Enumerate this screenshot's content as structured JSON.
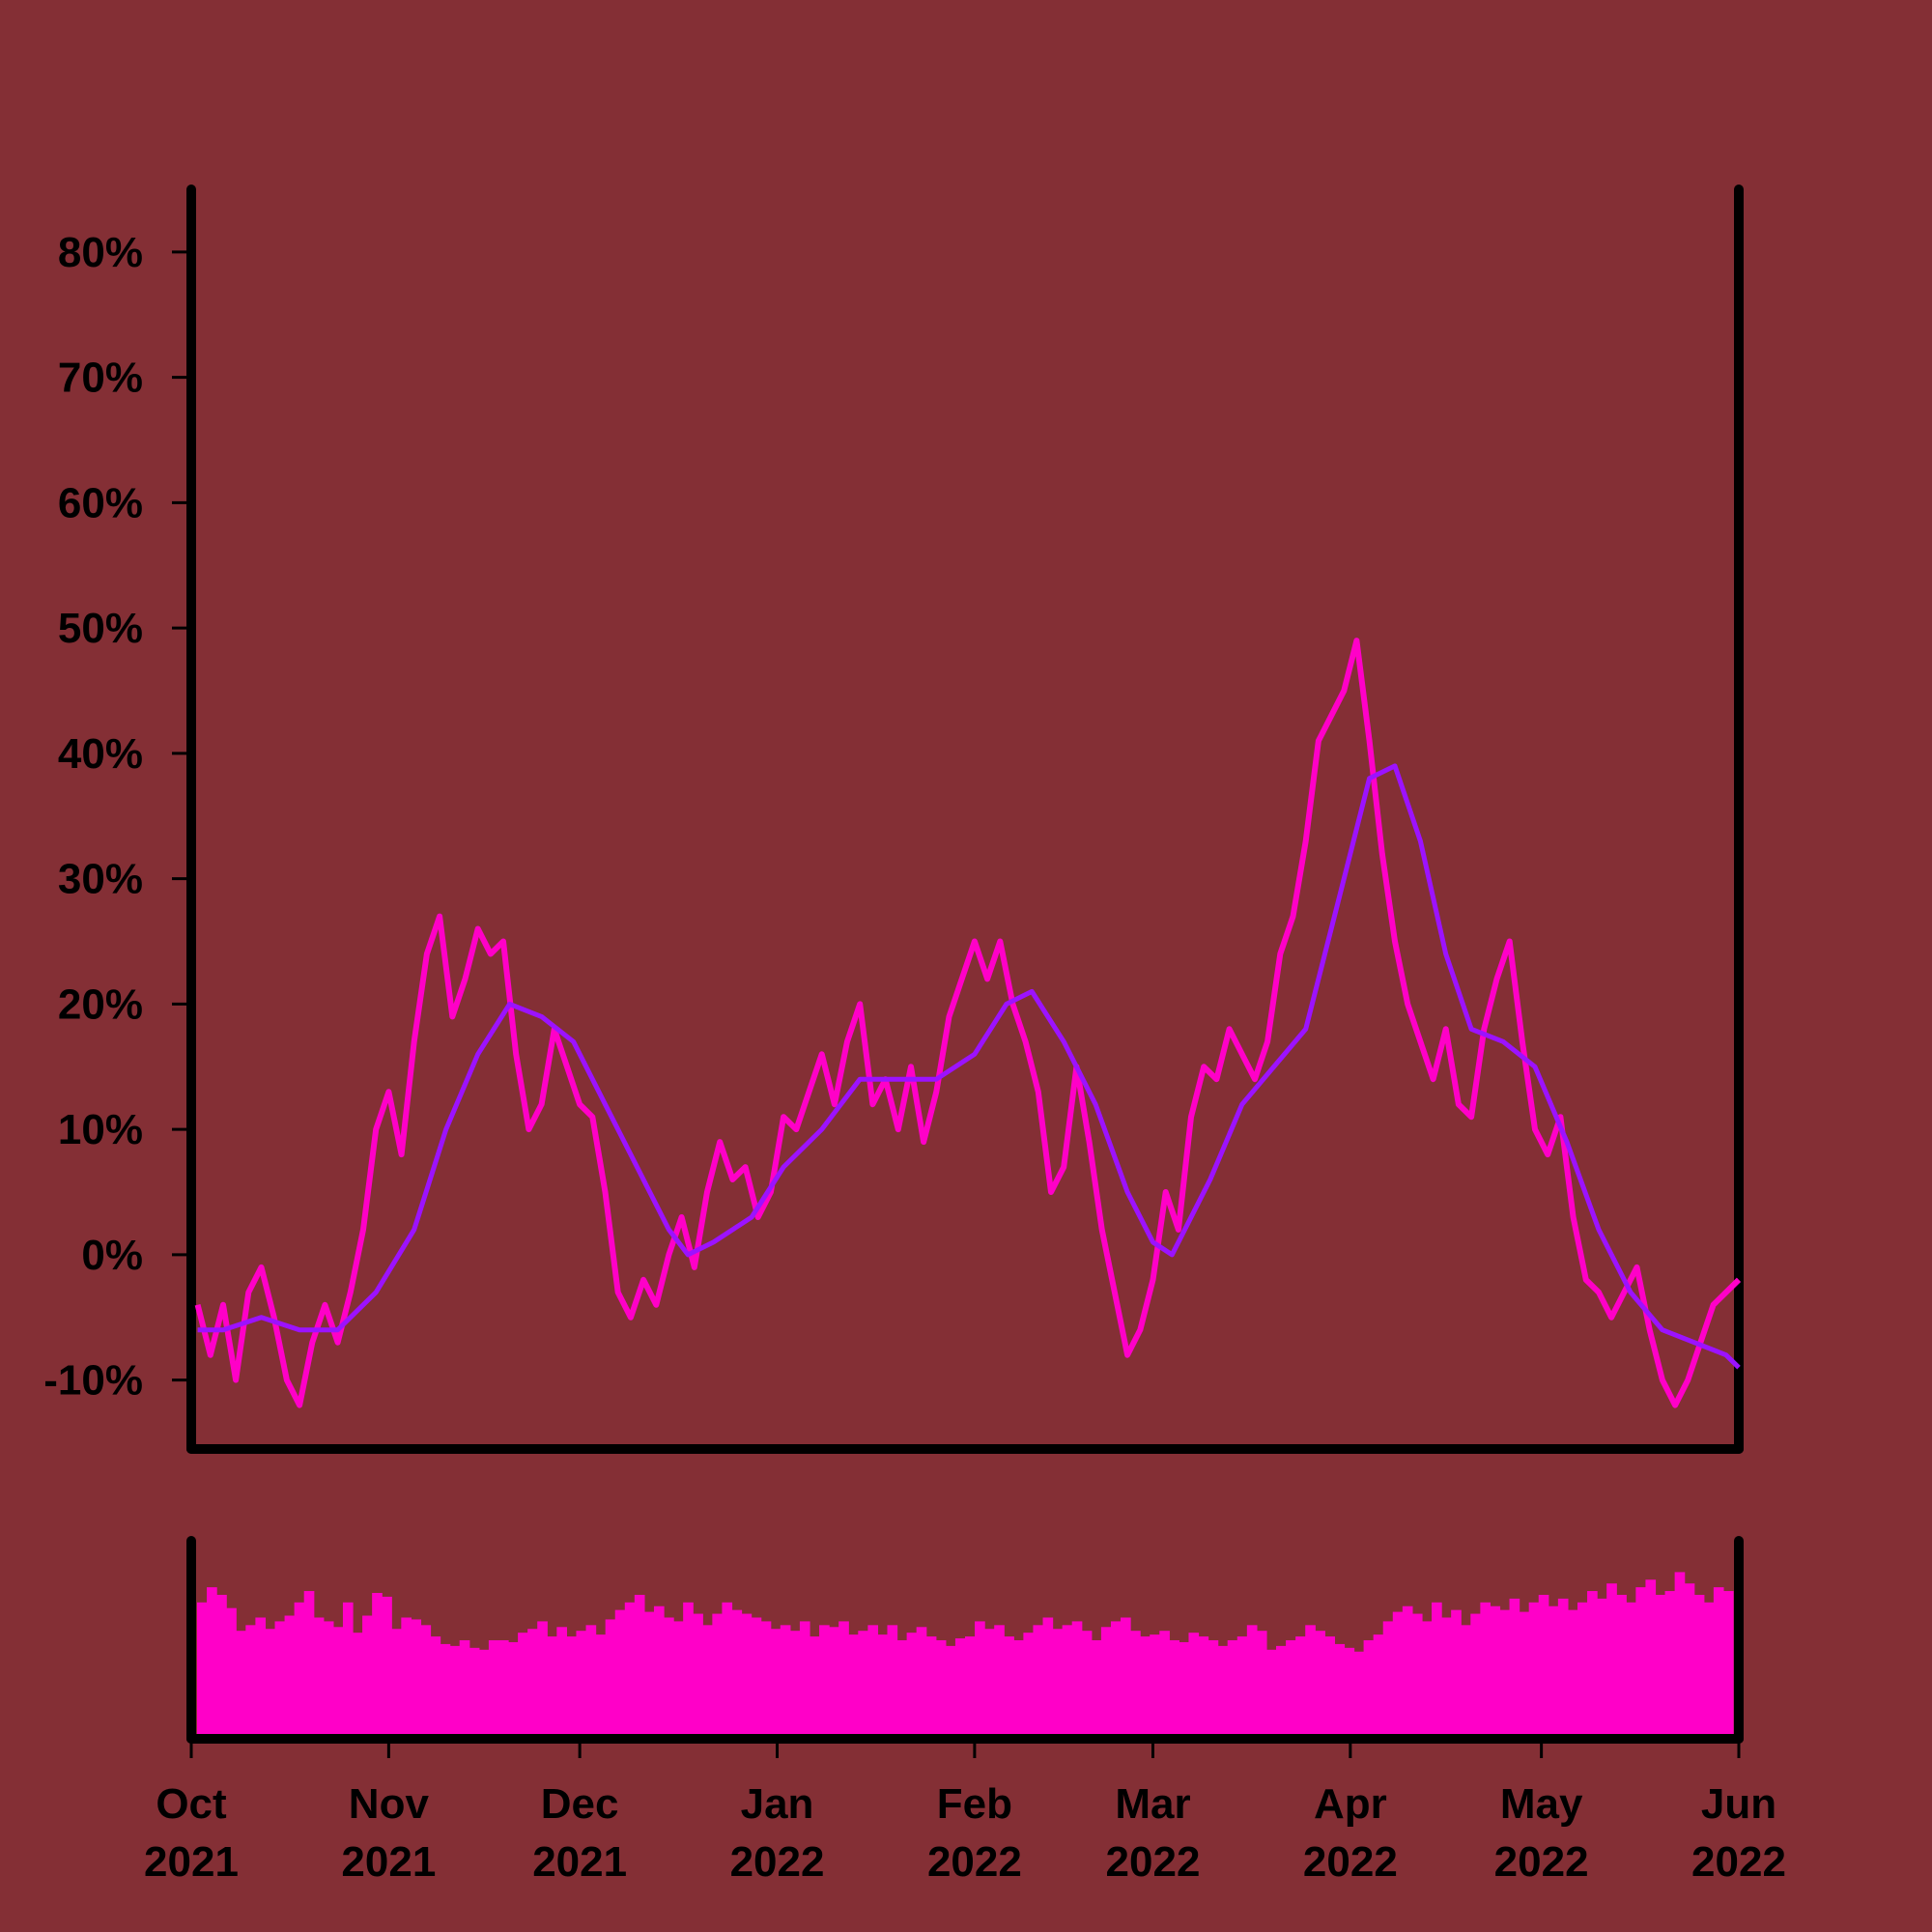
{
  "colors": {
    "background": "#842f35",
    "axis": "#000000",
    "price_line": "#ff00c8",
    "moving_average": "#9c12ff",
    "volume_bars": "#ff00c8"
  },
  "chart_data": [
    {
      "type": "line",
      "panel": "price",
      "title": "",
      "xlabel": "",
      "ylabel": "",
      "x_range": [
        "2021-10-01",
        "2022-06-01"
      ],
      "ylim": [
        -15.5,
        85
      ],
      "grid": false,
      "y_ticks": [
        {
          "value": -10,
          "label": "-10%"
        },
        {
          "value": 0,
          "label": "0%"
        },
        {
          "value": 10,
          "label": "10%"
        },
        {
          "value": 20,
          "label": "20%"
        },
        {
          "value": 30,
          "label": "30%"
        },
        {
          "value": 40,
          "label": "40%"
        },
        {
          "value": 50,
          "label": "50%"
        },
        {
          "value": 60,
          "label": "60%"
        },
        {
          "value": 70,
          "label": "70%"
        },
        {
          "value": 80,
          "label": "80%"
        }
      ],
      "x_ticks": [
        {
          "date": "2021-10-01",
          "month": "Oct",
          "year": "2021"
        },
        {
          "date": "2021-11-01",
          "month": "Nov",
          "year": "2021"
        },
        {
          "date": "2021-12-01",
          "month": "Dec",
          "year": "2021"
        },
        {
          "date": "2022-01-01",
          "month": "Jan",
          "year": "2022"
        },
        {
          "date": "2022-02-01",
          "month": "Feb",
          "year": "2022"
        },
        {
          "date": "2022-03-01",
          "month": "Mar",
          "year": "2022"
        },
        {
          "date": "2022-04-01",
          "month": "Apr",
          "year": "2022"
        },
        {
          "date": "2022-05-01",
          "month": "May",
          "year": "2022"
        },
        {
          "date": "2022-06-01",
          "month": "Jun",
          "year": "2022"
        }
      ],
      "series": [
        {
          "key": "price",
          "points": [
            [
              "2021-10-02",
              -4
            ],
            [
              "2021-10-04",
              -8
            ],
            [
              "2021-10-06",
              -4
            ],
            [
              "2021-10-08",
              -10
            ],
            [
              "2021-10-10",
              -3
            ],
            [
              "2021-10-12",
              -1
            ],
            [
              "2021-10-14",
              -5
            ],
            [
              "2021-10-16",
              -10
            ],
            [
              "2021-10-18",
              -12
            ],
            [
              "2021-10-20",
              -7
            ],
            [
              "2021-10-22",
              -4
            ],
            [
              "2021-10-24",
              -7
            ],
            [
              "2021-10-26",
              -3
            ],
            [
              "2021-10-28",
              2
            ],
            [
              "2021-10-30",
              10
            ],
            [
              "2021-11-01",
              13
            ],
            [
              "2021-11-03",
              8
            ],
            [
              "2021-11-05",
              17
            ],
            [
              "2021-11-07",
              24
            ],
            [
              "2021-11-09",
              27
            ],
            [
              "2021-11-11",
              19
            ],
            [
              "2021-11-13",
              22
            ],
            [
              "2021-11-15",
              26
            ],
            [
              "2021-11-17",
              24
            ],
            [
              "2021-11-19",
              25
            ],
            [
              "2021-11-21",
              16
            ],
            [
              "2021-11-23",
              10
            ],
            [
              "2021-11-25",
              12
            ],
            [
              "2021-11-27",
              18
            ],
            [
              "2021-11-29",
              15
            ],
            [
              "2021-12-01",
              12
            ],
            [
              "2021-12-03",
              11
            ],
            [
              "2021-12-05",
              5
            ],
            [
              "2021-12-07",
              -3
            ],
            [
              "2021-12-09",
              -5
            ],
            [
              "2021-12-11",
              -2
            ],
            [
              "2021-12-13",
              -4
            ],
            [
              "2021-12-15",
              0
            ],
            [
              "2021-12-17",
              3
            ],
            [
              "2021-12-19",
              -1
            ],
            [
              "2021-12-21",
              5
            ],
            [
              "2021-12-23",
              9
            ],
            [
              "2021-12-25",
              6
            ],
            [
              "2021-12-27",
              7
            ],
            [
              "2021-12-29",
              3
            ],
            [
              "2021-12-31",
              5
            ],
            [
              "2022-01-02",
              11
            ],
            [
              "2022-01-04",
              10
            ],
            [
              "2022-01-06",
              13
            ],
            [
              "2022-01-08",
              16
            ],
            [
              "2022-01-10",
              12
            ],
            [
              "2022-01-12",
              17
            ],
            [
              "2022-01-14",
              20
            ],
            [
              "2022-01-16",
              12
            ],
            [
              "2022-01-18",
              14
            ],
            [
              "2022-01-20",
              10
            ],
            [
              "2022-01-22",
              15
            ],
            [
              "2022-01-24",
              9
            ],
            [
              "2022-01-26",
              13
            ],
            [
              "2022-01-28",
              19
            ],
            [
              "2022-01-30",
              22
            ],
            [
              "2022-02-01",
              25
            ],
            [
              "2022-02-03",
              22
            ],
            [
              "2022-02-05",
              25
            ],
            [
              "2022-02-07",
              20
            ],
            [
              "2022-02-09",
              17
            ],
            [
              "2022-02-11",
              13
            ],
            [
              "2022-02-13",
              5
            ],
            [
              "2022-02-15",
              7
            ],
            [
              "2022-02-17",
              15
            ],
            [
              "2022-02-19",
              9
            ],
            [
              "2022-02-21",
              2
            ],
            [
              "2022-02-23",
              -3
            ],
            [
              "2022-02-25",
              -8
            ],
            [
              "2022-02-27",
              -6
            ],
            [
              "2022-03-01",
              -2
            ],
            [
              "2022-03-03",
              5
            ],
            [
              "2022-03-05",
              2
            ],
            [
              "2022-03-07",
              11
            ],
            [
              "2022-03-09",
              15
            ],
            [
              "2022-03-11",
              14
            ],
            [
              "2022-03-13",
              18
            ],
            [
              "2022-03-15",
              16
            ],
            [
              "2022-03-17",
              14
            ],
            [
              "2022-03-19",
              17
            ],
            [
              "2022-03-21",
              24
            ],
            [
              "2022-03-23",
              27
            ],
            [
              "2022-03-25",
              33
            ],
            [
              "2022-03-27",
              41
            ],
            [
              "2022-03-29",
              43
            ],
            [
              "2022-03-31",
              45
            ],
            [
              "2022-04-02",
              49
            ],
            [
              "2022-04-04",
              41
            ],
            [
              "2022-04-06",
              32
            ],
            [
              "2022-04-08",
              25
            ],
            [
              "2022-04-10",
              20
            ],
            [
              "2022-04-12",
              17
            ],
            [
              "2022-04-14",
              14
            ],
            [
              "2022-04-16",
              18
            ],
            [
              "2022-04-18",
              12
            ],
            [
              "2022-04-20",
              11
            ],
            [
              "2022-04-22",
              18
            ],
            [
              "2022-04-24",
              22
            ],
            [
              "2022-04-26",
              25
            ],
            [
              "2022-04-28",
              17
            ],
            [
              "2022-04-30",
              10
            ],
            [
              "2022-05-02",
              8
            ],
            [
              "2022-05-04",
              11
            ],
            [
              "2022-05-06",
              3
            ],
            [
              "2022-05-08",
              -2
            ],
            [
              "2022-05-10",
              -3
            ],
            [
              "2022-05-12",
              -5
            ],
            [
              "2022-05-14",
              -3
            ],
            [
              "2022-05-16",
              -1
            ],
            [
              "2022-05-18",
              -6
            ],
            [
              "2022-05-20",
              -10
            ],
            [
              "2022-05-22",
              -12
            ],
            [
              "2022-05-24",
              -10
            ],
            [
              "2022-05-26",
              -7
            ],
            [
              "2022-05-28",
              -4
            ],
            [
              "2022-05-30",
              -3
            ],
            [
              "2022-06-01",
              -2
            ]
          ]
        },
        {
          "key": "moving_average",
          "points": [
            [
              "2021-10-02",
              -6
            ],
            [
              "2021-10-06",
              -6
            ],
            [
              "2021-10-12",
              -5
            ],
            [
              "2021-10-18",
              -6
            ],
            [
              "2021-10-24",
              -6
            ],
            [
              "2021-10-30",
              -3
            ],
            [
              "2021-11-05",
              2
            ],
            [
              "2021-11-10",
              10
            ],
            [
              "2021-11-15",
              16
            ],
            [
              "2021-11-20",
              20
            ],
            [
              "2021-11-25",
              19
            ],
            [
              "2021-11-30",
              17
            ],
            [
              "2021-12-05",
              12
            ],
            [
              "2021-12-10",
              7
            ],
            [
              "2021-12-15",
              2
            ],
            [
              "2021-12-18",
              0
            ],
            [
              "2021-12-22",
              1
            ],
            [
              "2021-12-28",
              3
            ],
            [
              "2022-01-02",
              7
            ],
            [
              "2022-01-08",
              10
            ],
            [
              "2022-01-14",
              14
            ],
            [
              "2022-01-20",
              14
            ],
            [
              "2022-01-26",
              14
            ],
            [
              "2022-02-01",
              16
            ],
            [
              "2022-02-06",
              20
            ],
            [
              "2022-02-10",
              21
            ],
            [
              "2022-02-15",
              17
            ],
            [
              "2022-02-20",
              12
            ],
            [
              "2022-02-25",
              5
            ],
            [
              "2022-03-01",
              1
            ],
            [
              "2022-03-04",
              0
            ],
            [
              "2022-03-10",
              6
            ],
            [
              "2022-03-15",
              12
            ],
            [
              "2022-03-20",
              15
            ],
            [
              "2022-03-25",
              18
            ],
            [
              "2022-03-30",
              28
            ],
            [
              "2022-04-04",
              38
            ],
            [
              "2022-04-08",
              39
            ],
            [
              "2022-04-12",
              33
            ],
            [
              "2022-04-16",
              24
            ],
            [
              "2022-04-20",
              18
            ],
            [
              "2022-04-25",
              17
            ],
            [
              "2022-04-30",
              15
            ],
            [
              "2022-05-05",
              9
            ],
            [
              "2022-05-10",
              2
            ],
            [
              "2022-05-15",
              -3
            ],
            [
              "2022-05-20",
              -6
            ],
            [
              "2022-05-25",
              -7
            ],
            [
              "2022-05-30",
              -8
            ],
            [
              "2022-06-01",
              -9
            ]
          ]
        }
      ]
    },
    {
      "type": "bar",
      "panel": "volume",
      "title": "",
      "xlabel": "",
      "ylabel": "",
      "note": "unlabeled volume panel; values relative to panel max",
      "ylim": [
        0,
        1
      ],
      "values": [
        0.7,
        0.78,
        0.74,
        0.67,
        0.55,
        0.58,
        0.62,
        0.56,
        0.6,
        0.63,
        0.7,
        0.76,
        0.62,
        0.6,
        0.57,
        0.7,
        0.54,
        0.63,
        0.75,
        0.73,
        0.56,
        0.62,
        0.61,
        0.58,
        0.52,
        0.48,
        0.47,
        0.5,
        0.46,
        0.45,
        0.5,
        0.5,
        0.49,
        0.54,
        0.56,
        0.6,
        0.52,
        0.57,
        0.52,
        0.55,
        0.58,
        0.53,
        0.61,
        0.66,
        0.7,
        0.74,
        0.65,
        0.68,
        0.62,
        0.6,
        0.7,
        0.64,
        0.58,
        0.64,
        0.7,
        0.66,
        0.64,
        0.62,
        0.6,
        0.56,
        0.58,
        0.55,
        0.6,
        0.52,
        0.58,
        0.57,
        0.6,
        0.53,
        0.55,
        0.58,
        0.53,
        0.58,
        0.5,
        0.54,
        0.57,
        0.52,
        0.5,
        0.47,
        0.51,
        0.52,
        0.6,
        0.56,
        0.58,
        0.52,
        0.5,
        0.54,
        0.58,
        0.62,
        0.56,
        0.58,
        0.6,
        0.55,
        0.5,
        0.57,
        0.6,
        0.62,
        0.55,
        0.52,
        0.53,
        0.55,
        0.5,
        0.49,
        0.54,
        0.52,
        0.5,
        0.47,
        0.5,
        0.52,
        0.58,
        0.55,
        0.45,
        0.47,
        0.5,
        0.52,
        0.58,
        0.55,
        0.52,
        0.48,
        0.46,
        0.44,
        0.5,
        0.53,
        0.6,
        0.65,
        0.68,
        0.64,
        0.6,
        0.7,
        0.62,
        0.66,
        0.58,
        0.64,
        0.7,
        0.68,
        0.66,
        0.72,
        0.65,
        0.7,
        0.74,
        0.68,
        0.72,
        0.66,
        0.7,
        0.76,
        0.72,
        0.8,
        0.74,
        0.7,
        0.78,
        0.82,
        0.74,
        0.76,
        0.86,
        0.8,
        0.74,
        0.7,
        0.78,
        0.76
      ]
    }
  ]
}
